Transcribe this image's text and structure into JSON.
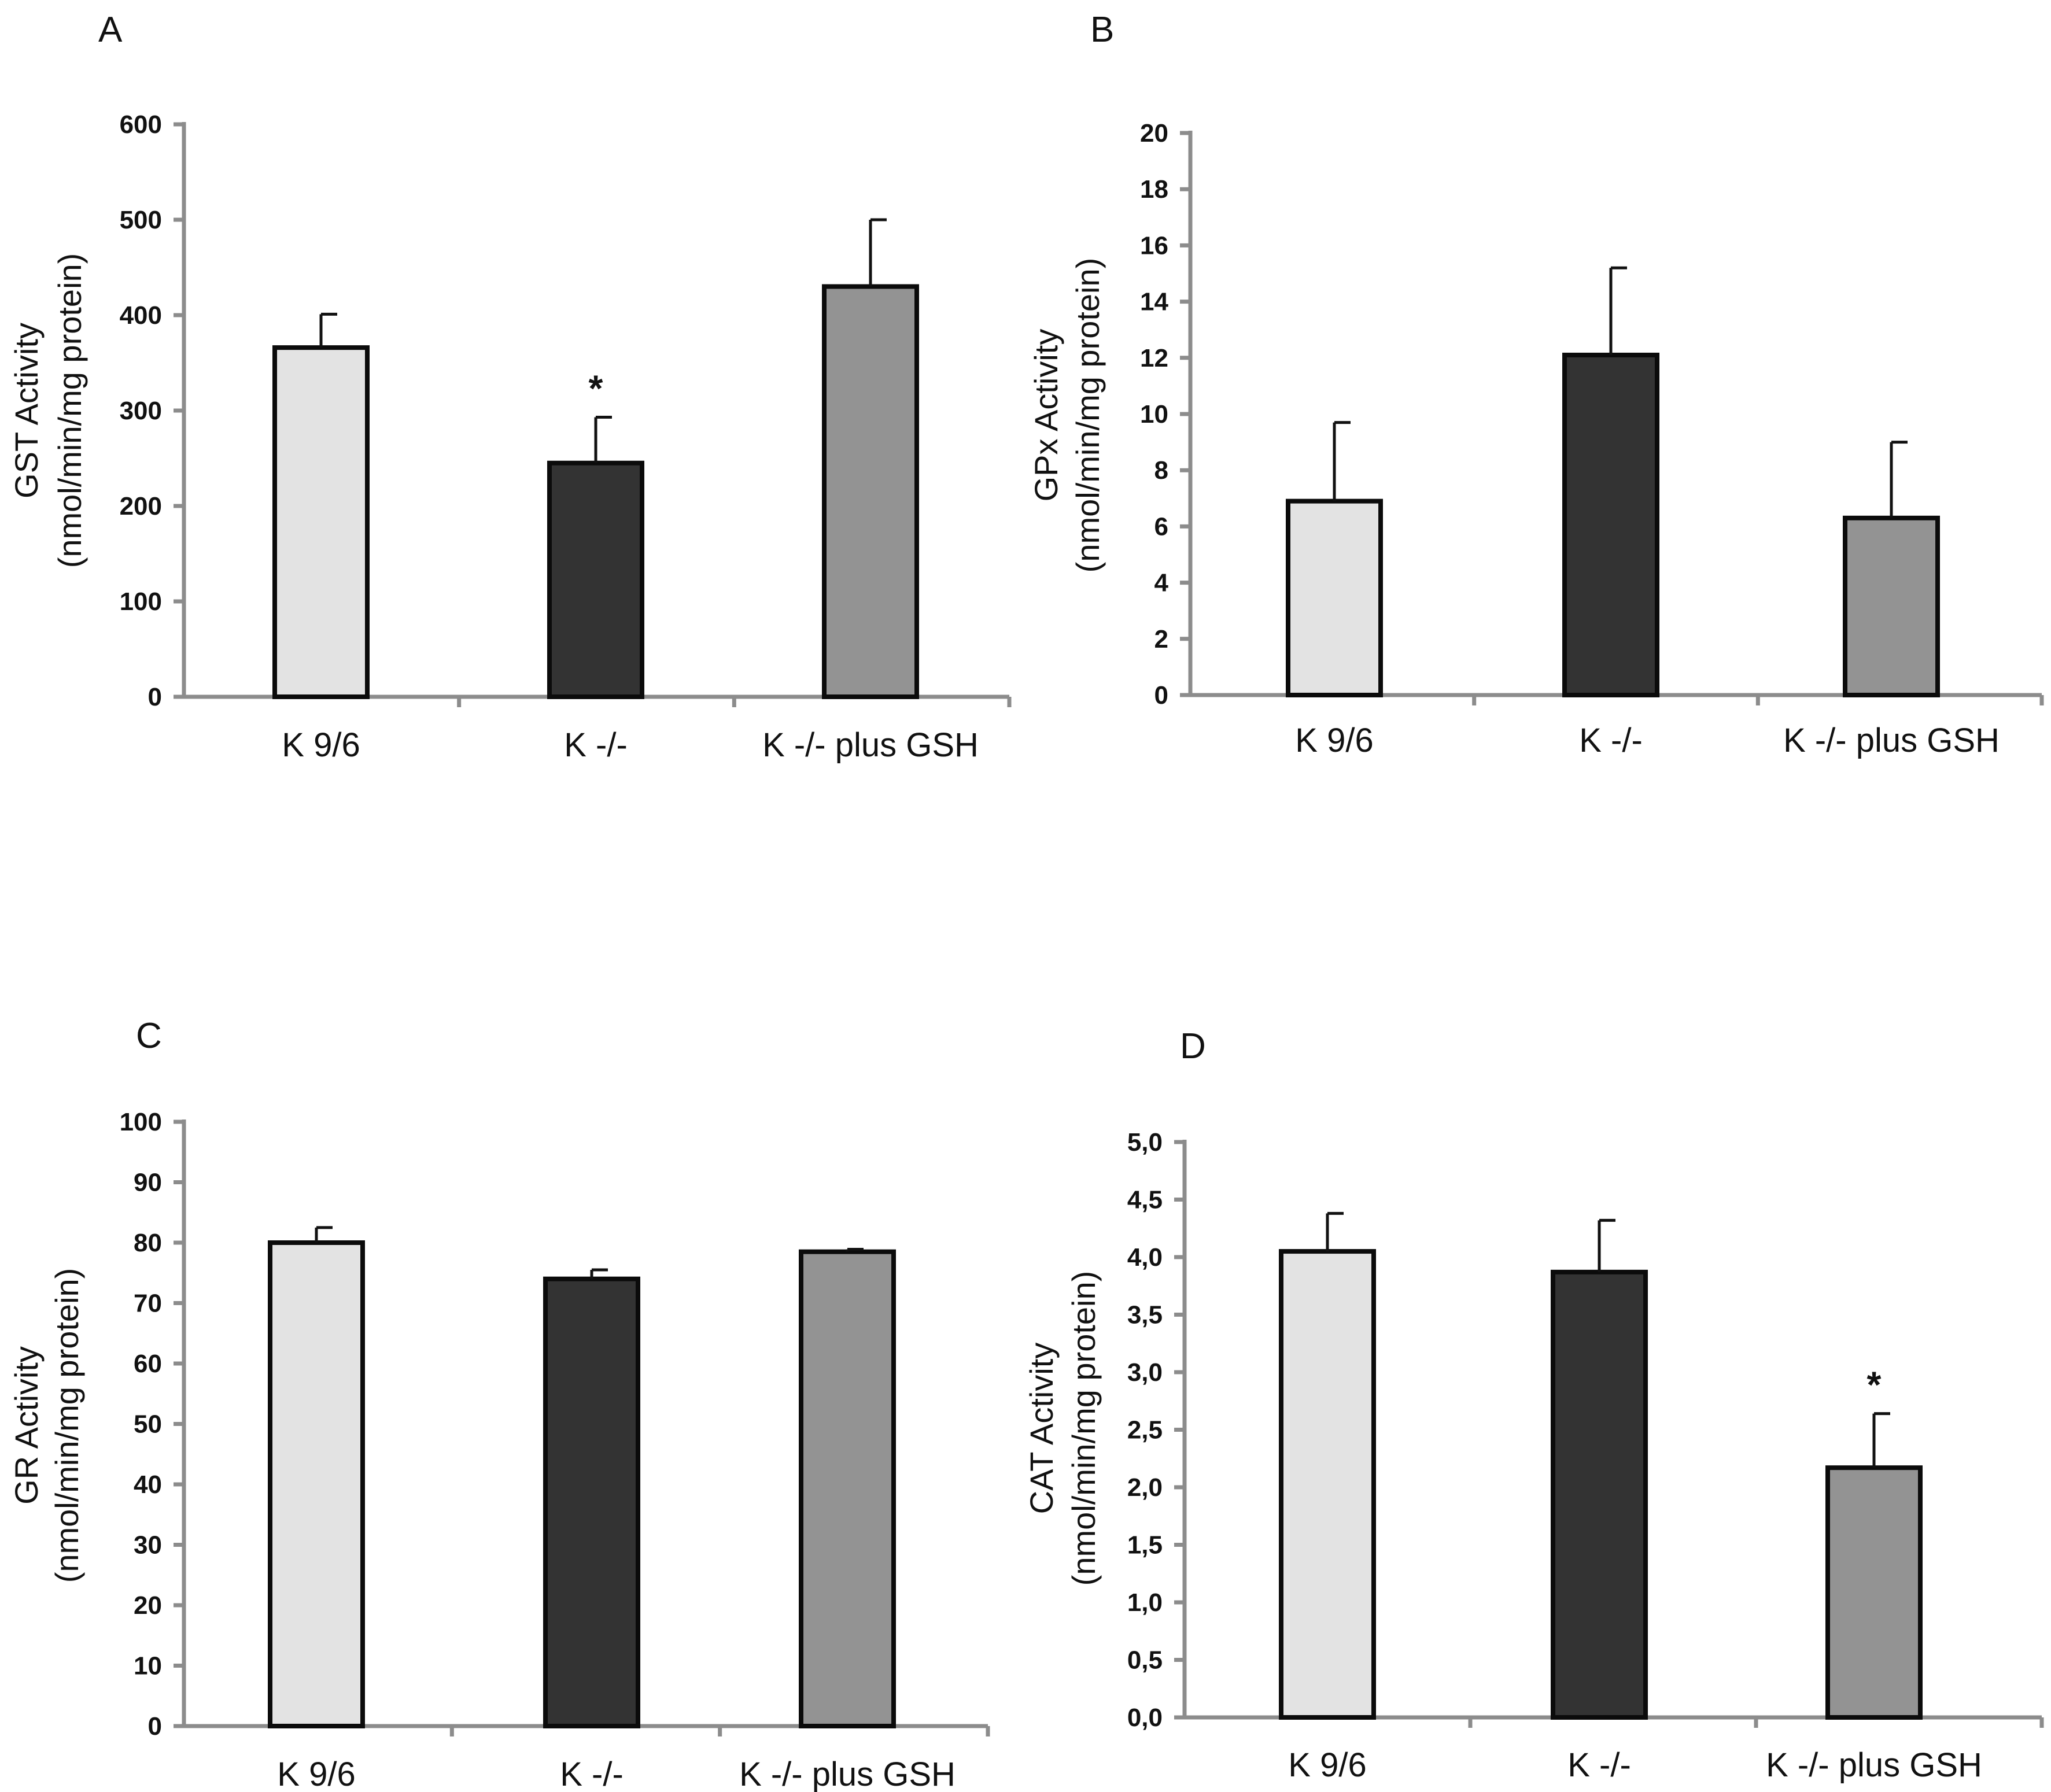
{
  "colors": {
    "K 9/6": "#e3e3e3",
    "K -/-": "#333333",
    "K -/- plus GSH": "#939393",
    "axis": "#8c8c8c"
  },
  "chart_data": [
    {
      "panel": "A",
      "type": "bar",
      "categories": [
        "K 9/6",
        "K -/-",
        "K -/- plus GSH"
      ],
      "values": [
        366,
        245,
        430
      ],
      "error": [
        35,
        48,
        70
      ],
      "significance": [
        "",
        "*",
        ""
      ],
      "ylabel": [
        "GST Activity",
        "(nmol/min/mg protein)"
      ],
      "ylim": [
        0,
        600
      ],
      "yticks": [
        0,
        100,
        200,
        300,
        400,
        500,
        600
      ],
      "ytick_labels": [
        "0",
        "100",
        "200",
        "300",
        "400",
        "500",
        "600"
      ],
      "grid": false
    },
    {
      "panel": "B",
      "type": "bar",
      "categories": [
        "K 9/6",
        "K -/-",
        "K -/- plus GSH"
      ],
      "values": [
        6.9,
        12.1,
        6.3
      ],
      "error": [
        2.8,
        3.1,
        2.7
      ],
      "significance": [
        "",
        "",
        ""
      ],
      "ylabel": [
        "GPx Activity",
        "(nmol/min/mg protein)"
      ],
      "ylim": [
        0,
        20
      ],
      "yticks": [
        0,
        2,
        4,
        6,
        8,
        10,
        12,
        14,
        16,
        18,
        20
      ],
      "ytick_labels": [
        "0",
        "2",
        "4",
        "6",
        "8",
        "10",
        "12",
        "14",
        "16",
        "18",
        "20"
      ],
      "grid": false
    },
    {
      "panel": "C",
      "type": "bar",
      "categories": [
        "K 9/6",
        "K -/-",
        "K -/- plus GSH"
      ],
      "values": [
        80,
        74,
        78.5
      ],
      "error": [
        2.5,
        1.5,
        0.4
      ],
      "significance": [
        "",
        "",
        ""
      ],
      "ylabel": [
        "GR Activity",
        "(nmol/min/mg protein)"
      ],
      "ylim": [
        0,
        100
      ],
      "yticks": [
        0,
        10,
        20,
        30,
        40,
        50,
        60,
        70,
        80,
        90,
        100
      ],
      "ytick_labels": [
        "0",
        "10",
        "20",
        "30",
        "40",
        "50",
        "60",
        "70",
        "80",
        "90",
        "100"
      ],
      "grid": false
    },
    {
      "panel": "D",
      "type": "bar",
      "categories": [
        "K 9/6",
        "K -/-",
        "K -/- plus GSH"
      ],
      "values": [
        4.05,
        3.87,
        2.17
      ],
      "error": [
        0.33,
        0.45,
        0.47
      ],
      "significance": [
        "",
        "",
        "*"
      ],
      "ylabel": [
        "CAT Activity",
        "(nmol/min/mg protein)"
      ],
      "ylim": [
        0,
        5
      ],
      "yticks": [
        0,
        0.5,
        1,
        1.5,
        2,
        2.5,
        3,
        3.5,
        4,
        4.5,
        5
      ],
      "ytick_labels": [
        "0,0",
        "0,5",
        "1,0",
        "1,5",
        "2,0",
        "2,5",
        "3,0",
        "3,5",
        "4,0",
        "4,5",
        "5,0"
      ],
      "grid": false
    }
  ]
}
